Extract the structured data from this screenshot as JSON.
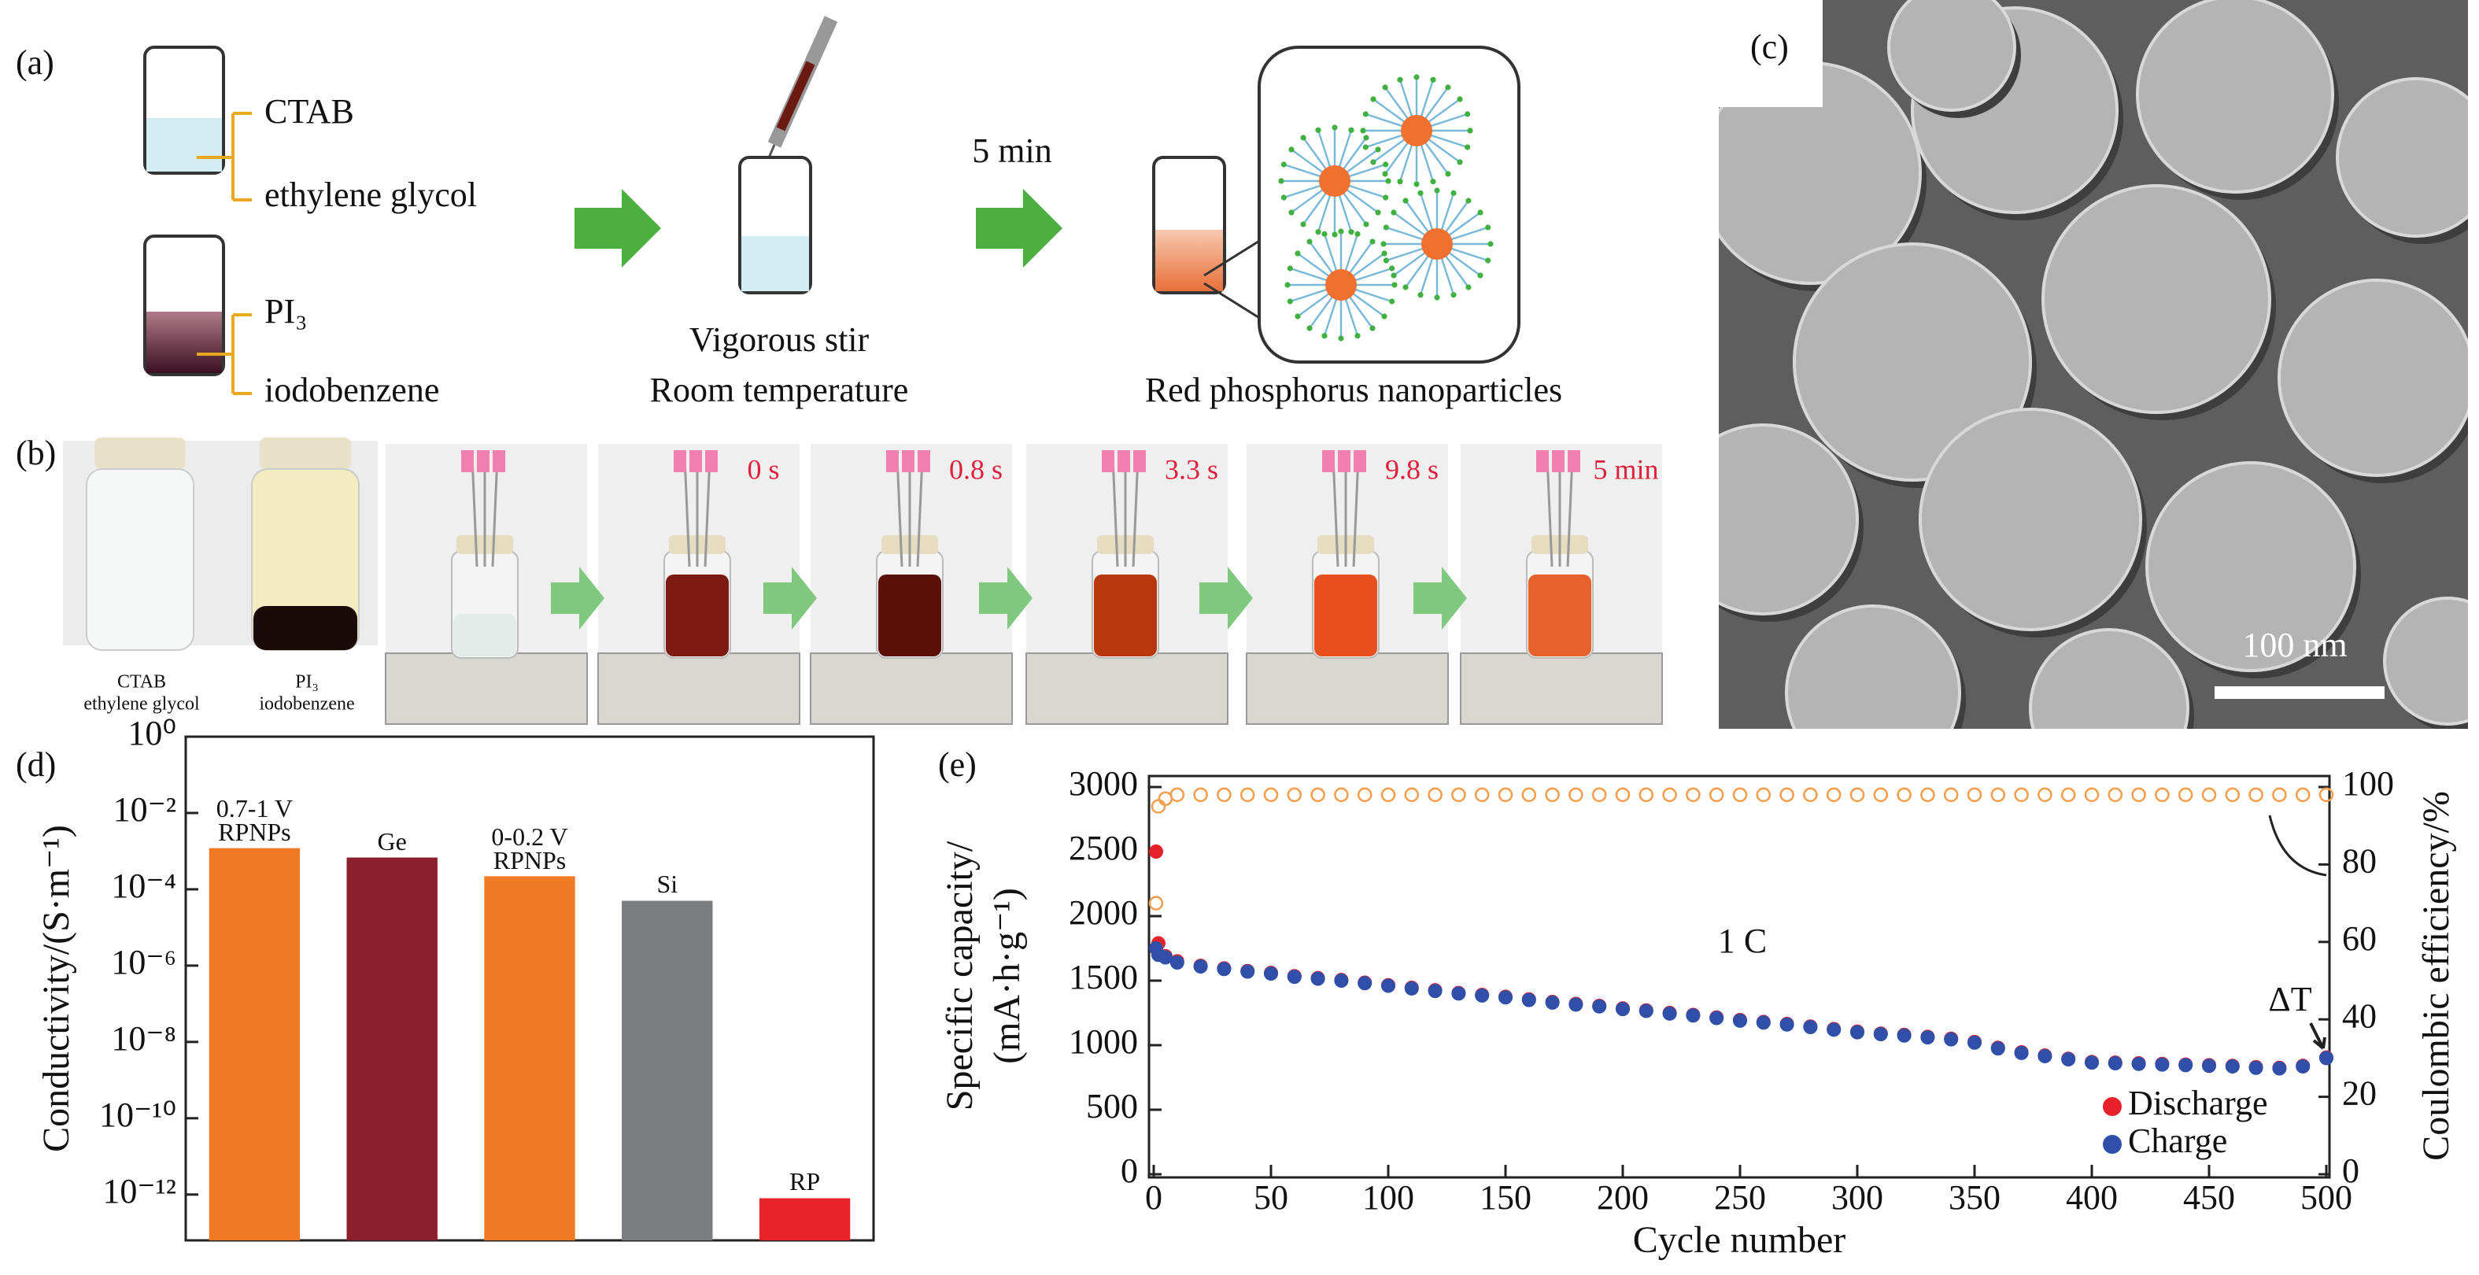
{
  "panels": {
    "a": {
      "label": "(a)",
      "reagents": [
        "CTAB",
        "ethylene glycol",
        "PI₃",
        "iodobenzene"
      ],
      "time": "5 min",
      "step": [
        "Vigorous stir",
        "Room temperature"
      ],
      "product": "Red phosphorus nanoparticles"
    },
    "b": {
      "label": "(b)",
      "vial_labels": [
        [
          "CTAB",
          "ethylene glycol"
        ],
        [
          "PI₃",
          "iodobenzene"
        ]
      ],
      "times": [
        "0 s",
        "0.8 s",
        "3.3 s",
        "9.8 s",
        "5 min"
      ]
    },
    "c": {
      "label": "(c)",
      "scale_bar": "100 nm"
    }
  },
  "chart_data": [
    {
      "type": "bar",
      "label": "(d)",
      "ylabel": "Conductivity/(S·m⁻¹)",
      "categories": [
        "0.7-1 V RPNPs",
        "Ge",
        "0-0.2 V RPNPs",
        "Si",
        "RP"
      ],
      "values": [
        0.0012,
        0.00068,
        0.00022,
        5e-05,
        8e-13
      ],
      "colors": [
        "#f07a25",
        "#8b1f2b",
        "#f07a25",
        "#7a7c80",
        "#e8232a"
      ],
      "ylog": true,
      "ylim": [
        6.3e-14,
        1
      ],
      "yticks": [
        {
          "value": 1,
          "label": "10⁰"
        },
        {
          "value": 0.01,
          "label": "10⁻²"
        },
        {
          "value": 0.0001,
          "label": "10⁻⁴"
        },
        {
          "value": 1e-06,
          "label": "10⁻⁶"
        },
        {
          "value": 1e-08,
          "label": "10⁻⁸"
        },
        {
          "value": 1e-10,
          "label": "10⁻¹⁰"
        },
        {
          "value": 1e-12,
          "label": "10⁻¹²"
        }
      ]
    },
    {
      "type": "scatter",
      "label": "(e)",
      "xlabel": "Cycle number",
      "ylabel": [
        "Specific capacity/",
        "(mA·h·g⁻¹)"
      ],
      "y2label": "Coulombic efficiency/%",
      "annotations": [
        "1 C",
        "ΔT"
      ],
      "legend": "lower right",
      "xlim": [
        0,
        500
      ],
      "xticks": [
        0,
        50,
        100,
        150,
        200,
        250,
        300,
        350,
        400,
        450,
        500
      ],
      "ylim": [
        0,
        3000
      ],
      "yticks": [
        0,
        500,
        1000,
        1500,
        2000,
        2500,
        3000
      ],
      "y2lim": [
        0,
        100
      ],
      "y2ticks": [
        0,
        20,
        40,
        60,
        80,
        100
      ],
      "x": [
        1,
        2,
        5,
        10,
        20,
        30,
        40,
        50,
        60,
        70,
        80,
        90,
        100,
        110,
        120,
        130,
        140,
        150,
        160,
        170,
        180,
        190,
        200,
        210,
        220,
        230,
        240,
        250,
        260,
        270,
        280,
        290,
        300,
        310,
        320,
        330,
        340,
        350,
        360,
        370,
        380,
        390,
        400,
        410,
        420,
        430,
        440,
        450,
        460,
        470,
        480,
        490,
        500
      ],
      "series": [
        {
          "name": "Discharge",
          "color": "#e8202a",
          "values": [
            2500,
            1790,
            1690,
            1650,
            1615,
            1595,
            1575,
            1560,
            1535,
            1520,
            1505,
            1485,
            1465,
            1445,
            1425,
            1405,
            1390,
            1375,
            1355,
            1335,
            1320,
            1305,
            1285,
            1270,
            1250,
            1235,
            1215,
            1195,
            1180,
            1165,
            1145,
            1125,
            1105,
            1090,
            1080,
            1065,
            1050,
            1025,
            980,
            945,
            920,
            895,
            870,
            865,
            860,
            855,
            850,
            845,
            840,
            830,
            825,
            840,
            905
          ]
        },
        {
          "name": "Charge",
          "color": "#2f4fa8",
          "values": [
            1750,
            1700,
            1680,
            1640,
            1610,
            1590,
            1570,
            1555,
            1530,
            1515,
            1500,
            1480,
            1460,
            1440,
            1420,
            1400,
            1385,
            1370,
            1350,
            1330,
            1315,
            1300,
            1280,
            1265,
            1245,
            1230,
            1210,
            1190,
            1175,
            1160,
            1140,
            1120,
            1100,
            1085,
            1075,
            1060,
            1045,
            1020,
            975,
            940,
            915,
            890,
            865,
            860,
            855,
            850,
            845,
            840,
            835,
            825,
            820,
            835,
            900
          ]
        },
        {
          "color": "#f0a050",
          "axis": "y2",
          "open": true,
          "values": [
            70,
            95,
            97,
            98,
            98,
            98,
            98,
            98,
            98,
            98,
            98,
            98,
            98,
            98,
            98,
            98,
            98,
            98,
            98,
            98,
            98,
            98,
            98,
            98,
            98,
            98,
            98,
            98,
            98,
            98,
            98,
            98,
            98,
            98,
            98,
            98,
            98,
            98,
            98,
            98,
            98,
            98,
            98,
            98,
            98,
            98,
            98,
            98,
            98,
            98,
            98,
            98,
            98
          ]
        }
      ]
    }
  ]
}
